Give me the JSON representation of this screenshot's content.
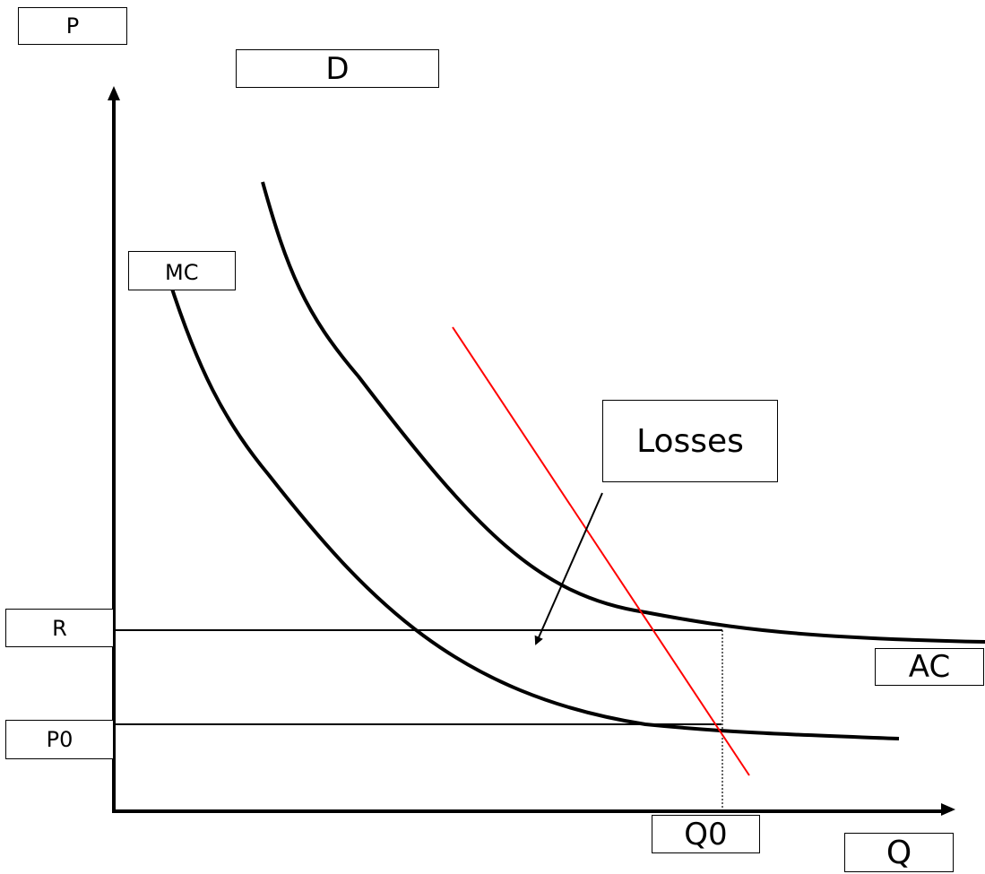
{
  "labels": {
    "p_axis": "P",
    "q_axis": "Q",
    "demand": "D",
    "marginal_cost": "MC",
    "average_cost": "AC",
    "losses": "Losses",
    "price_r": "R",
    "price_p0": "P0",
    "quantity_q0": "Q0"
  },
  "colors": {
    "axes": "#000000",
    "cost_curves": "#000000",
    "demand_line": "#ff0000",
    "guide_lines": "#000000"
  }
}
